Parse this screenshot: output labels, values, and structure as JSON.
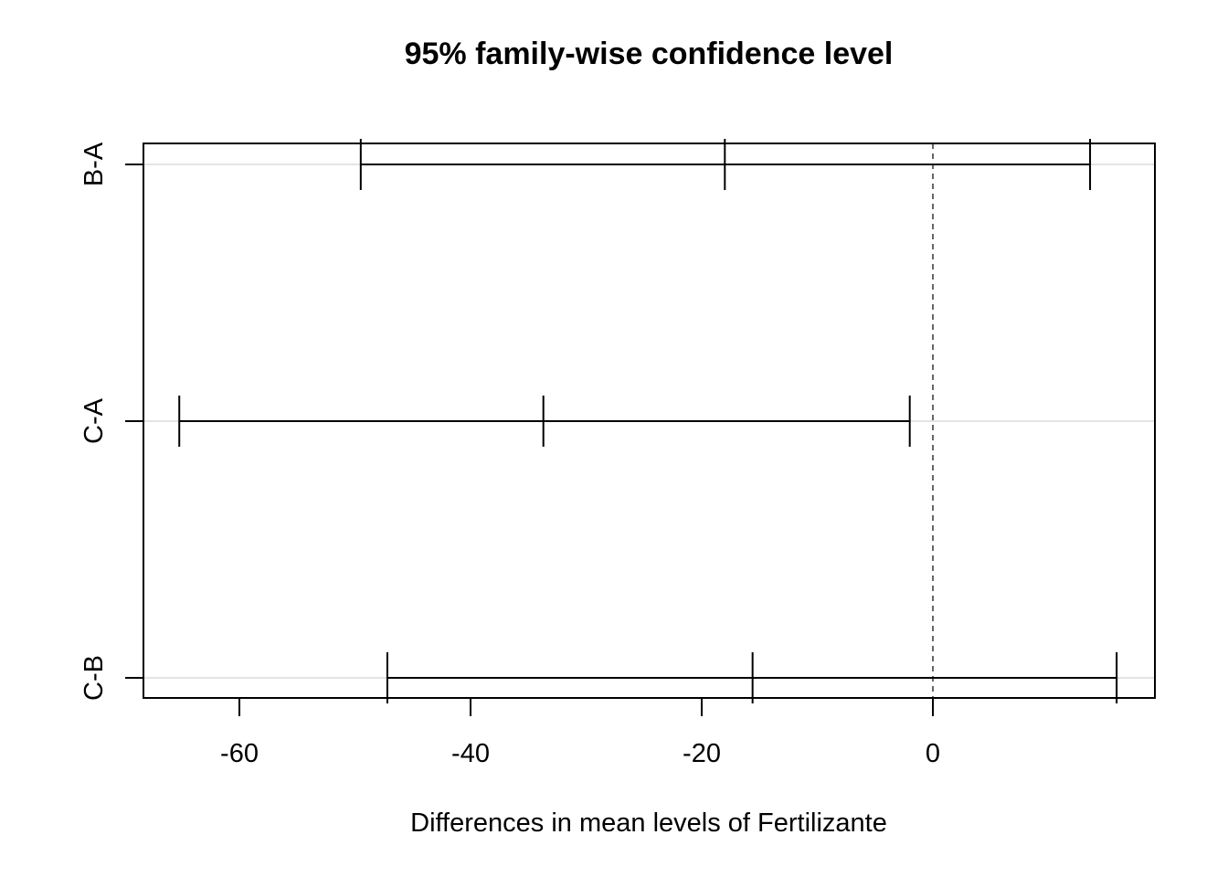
{
  "chart_data": {
    "type": "errorbar",
    "title": "95% family-wise confidence level",
    "xlabel": "Differences in mean levels of Fertilizante",
    "ylabel": "",
    "xlim": [
      -68.4,
      19.1
    ],
    "x_ticks": [
      -60,
      -40,
      -20,
      0
    ],
    "x_tick_labels": [
      "-60",
      "-40",
      "-20",
      "0"
    ],
    "reference_line": 0,
    "grid": "horizontal",
    "comparisons": [
      {
        "label": "B-A",
        "lower": -49.5,
        "diff": -18.0,
        "upper": 13.6
      },
      {
        "label": "C-A",
        "lower": -65.2,
        "diff": -33.7,
        "upper": -2.0
      },
      {
        "label": "C-B",
        "lower": -47.2,
        "diff": -15.6,
        "upper": 15.9
      }
    ]
  }
}
